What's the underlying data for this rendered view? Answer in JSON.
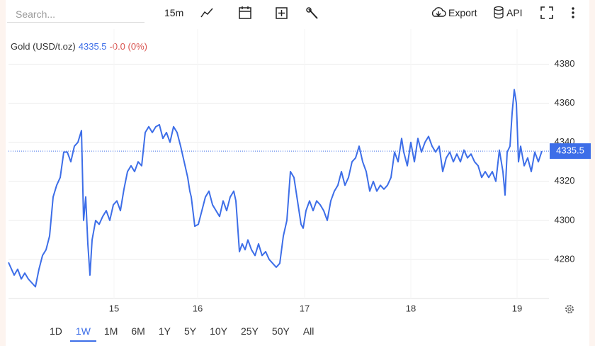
{
  "toolbar": {
    "search_placeholder": "Search...",
    "interval": "15m",
    "export": "Export",
    "api": "API"
  },
  "ranges": [
    "1D",
    "1W",
    "1M",
    "6M",
    "1Y",
    "5Y",
    "10Y",
    "25Y",
    "50Y",
    "All"
  ],
  "selected_range": "1W",
  "chart_data": {
    "type": "line",
    "change_label": "-0.0 (0%)",
    "series": [
      {
        "name": "Gold (USD/t.oz)",
        "color": "#3d6ee8",
        "x": [
          0,
          3,
          8,
          13,
          18,
          23,
          28,
          33,
          38,
          43,
          48,
          53,
          58,
          63,
          68,
          73,
          78,
          83,
          88,
          93,
          98,
          103,
          106,
          109,
          112,
          115,
          118,
          123,
          128,
          133,
          138,
          143,
          148,
          153,
          158,
          163,
          168,
          173,
          178,
          183,
          188,
          193,
          198,
          203,
          208,
          213,
          218,
          223,
          228,
          233,
          238,
          243,
          248,
          253,
          256,
          258,
          263,
          268,
          273,
          278,
          283,
          288,
          293,
          298,
          303,
          308,
          313,
          318,
          321,
          323,
          326,
          330,
          334,
          338,
          343,
          348,
          353,
          358,
          363,
          368,
          373,
          378,
          383,
          388,
          393,
          398,
          403,
          408,
          413,
          416,
          420,
          425,
          430,
          435,
          440,
          445,
          450,
          455,
          460,
          465,
          470,
          475,
          480,
          485,
          490,
          495,
          500,
          505,
          510,
          515,
          520,
          525,
          530,
          535,
          540,
          545,
          550,
          555,
          558,
          563,
          568,
          573,
          578,
          583,
          588,
          593,
          598,
          603,
          608,
          613,
          618,
          623,
          628,
          633,
          638,
          643,
          648,
          653,
          658,
          663,
          668,
          673,
          678,
          683,
          688,
          693,
          698,
          701,
          704,
          708,
          711,
          714,
          717,
          720,
          723,
          728,
          733,
          738,
          743,
          748,
          753
        ],
        "values": [
          4278.5,
          4276,
          4272,
          4275,
          4270,
          4273,
          4270,
          4268,
          4266,
          4275,
          4282,
          4285,
          4292,
          4312,
          4318,
          4322,
          4335,
          4335,
          4330,
          4338,
          4340,
          4346,
          4300,
          4312,
          4288,
          4272,
          4290,
          4300,
          4298,
          4302,
          4305,
          4300,
          4308,
          4310,
          4305,
          4316,
          4325,
          4328,
          4325,
          4330,
          4328,
          4345,
          4348,
          4345,
          4348,
          4349,
          4342,
          4345,
          4340,
          4348,
          4345,
          4338,
          4330,
          4322,
          4315,
          4312,
          4297,
          4298,
          4305,
          4312,
          4315,
          4308,
          4305,
          4302,
          4310,
          4305,
          4312,
          4315,
          4310,
          4300,
          4284,
          4288,
          4285,
          4290,
          4285,
          4282,
          4288,
          4282,
          4284,
          4280,
          4278,
          4276,
          4278,
          4292,
          4300,
          4325,
          4322,
          4310,
          4298,
          4296,
          4305,
          4310,
          4305,
          4310,
          4308,
          4305,
          4300,
          4310,
          4315,
          4318,
          4325,
          4318,
          4322,
          4330,
          4332,
          4338,
          4330,
          4325,
          4315,
          4320,
          4315,
          4318,
          4316,
          4318,
          4322,
          4335,
          4330,
          4342,
          4335,
          4328,
          4340,
          4330,
          4342,
          4335,
          4340,
          4343,
          4338,
          4335,
          4338,
          4325,
          4332,
          4335,
          4330,
          4334,
          4330,
          4336,
          4332,
          4334,
          4330,
          4328,
          4322,
          4325,
          4322,
          4325,
          4320,
          4336,
          4325,
          4313,
          4335,
          4338,
          4355,
          4367,
          4360,
          4330,
          4338,
          4328,
          4332,
          4325,
          4335,
          4330,
          4335.5
        ]
      }
    ],
    "xlim": [
      0,
      763
    ],
    "xticks": [
      {
        "value": 149,
        "label": "15"
      },
      {
        "value": 267,
        "label": "16"
      },
      {
        "value": 418,
        "label": "17"
      },
      {
        "value": 568,
        "label": "18"
      },
      {
        "value": 718,
        "label": "19"
      }
    ],
    "ylim": [
      4260,
      4398
    ],
    "yticks": [
      4280,
      4300,
      4320,
      4340,
      4360,
      4380
    ],
    "grid": true
  }
}
